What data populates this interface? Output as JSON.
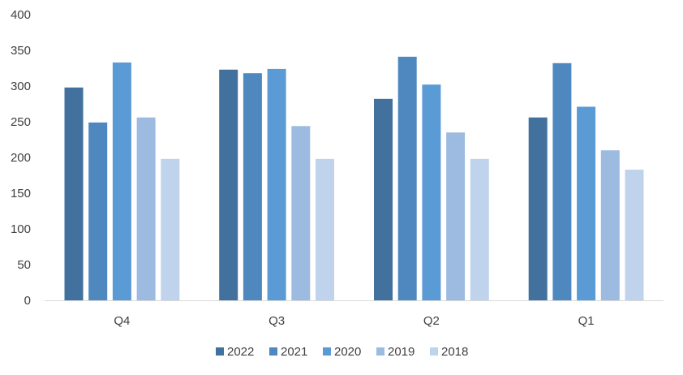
{
  "chart_data": {
    "type": "bar",
    "title": "",
    "xlabel": "",
    "ylabel": "",
    "categories": [
      "Q4",
      "Q3",
      "Q2",
      "Q1"
    ],
    "series": [
      {
        "name": "2022",
        "color": "#41719c",
        "values": [
          298,
          323,
          282,
          256
        ]
      },
      {
        "name": "2021",
        "color": "#4e88bf",
        "values": [
          249,
          318,
          341,
          332
        ]
      },
      {
        "name": "2020",
        "color": "#5b9bd5",
        "values": [
          333,
          324,
          302,
          271
        ]
      },
      {
        "name": "2019",
        "color": "#9dbbe1",
        "values": [
          256,
          244,
          235,
          210
        ]
      },
      {
        "name": "2018",
        "color": "#c0d3ec",
        "values": [
          198,
          198,
          198,
          183
        ]
      }
    ],
    "ylim": [
      0,
      400
    ],
    "yticks": [
      "0",
      "50",
      "100",
      "150",
      "200",
      "250",
      "300",
      "350",
      "400"
    ],
    "grid": false,
    "legend_position": "bottom"
  }
}
